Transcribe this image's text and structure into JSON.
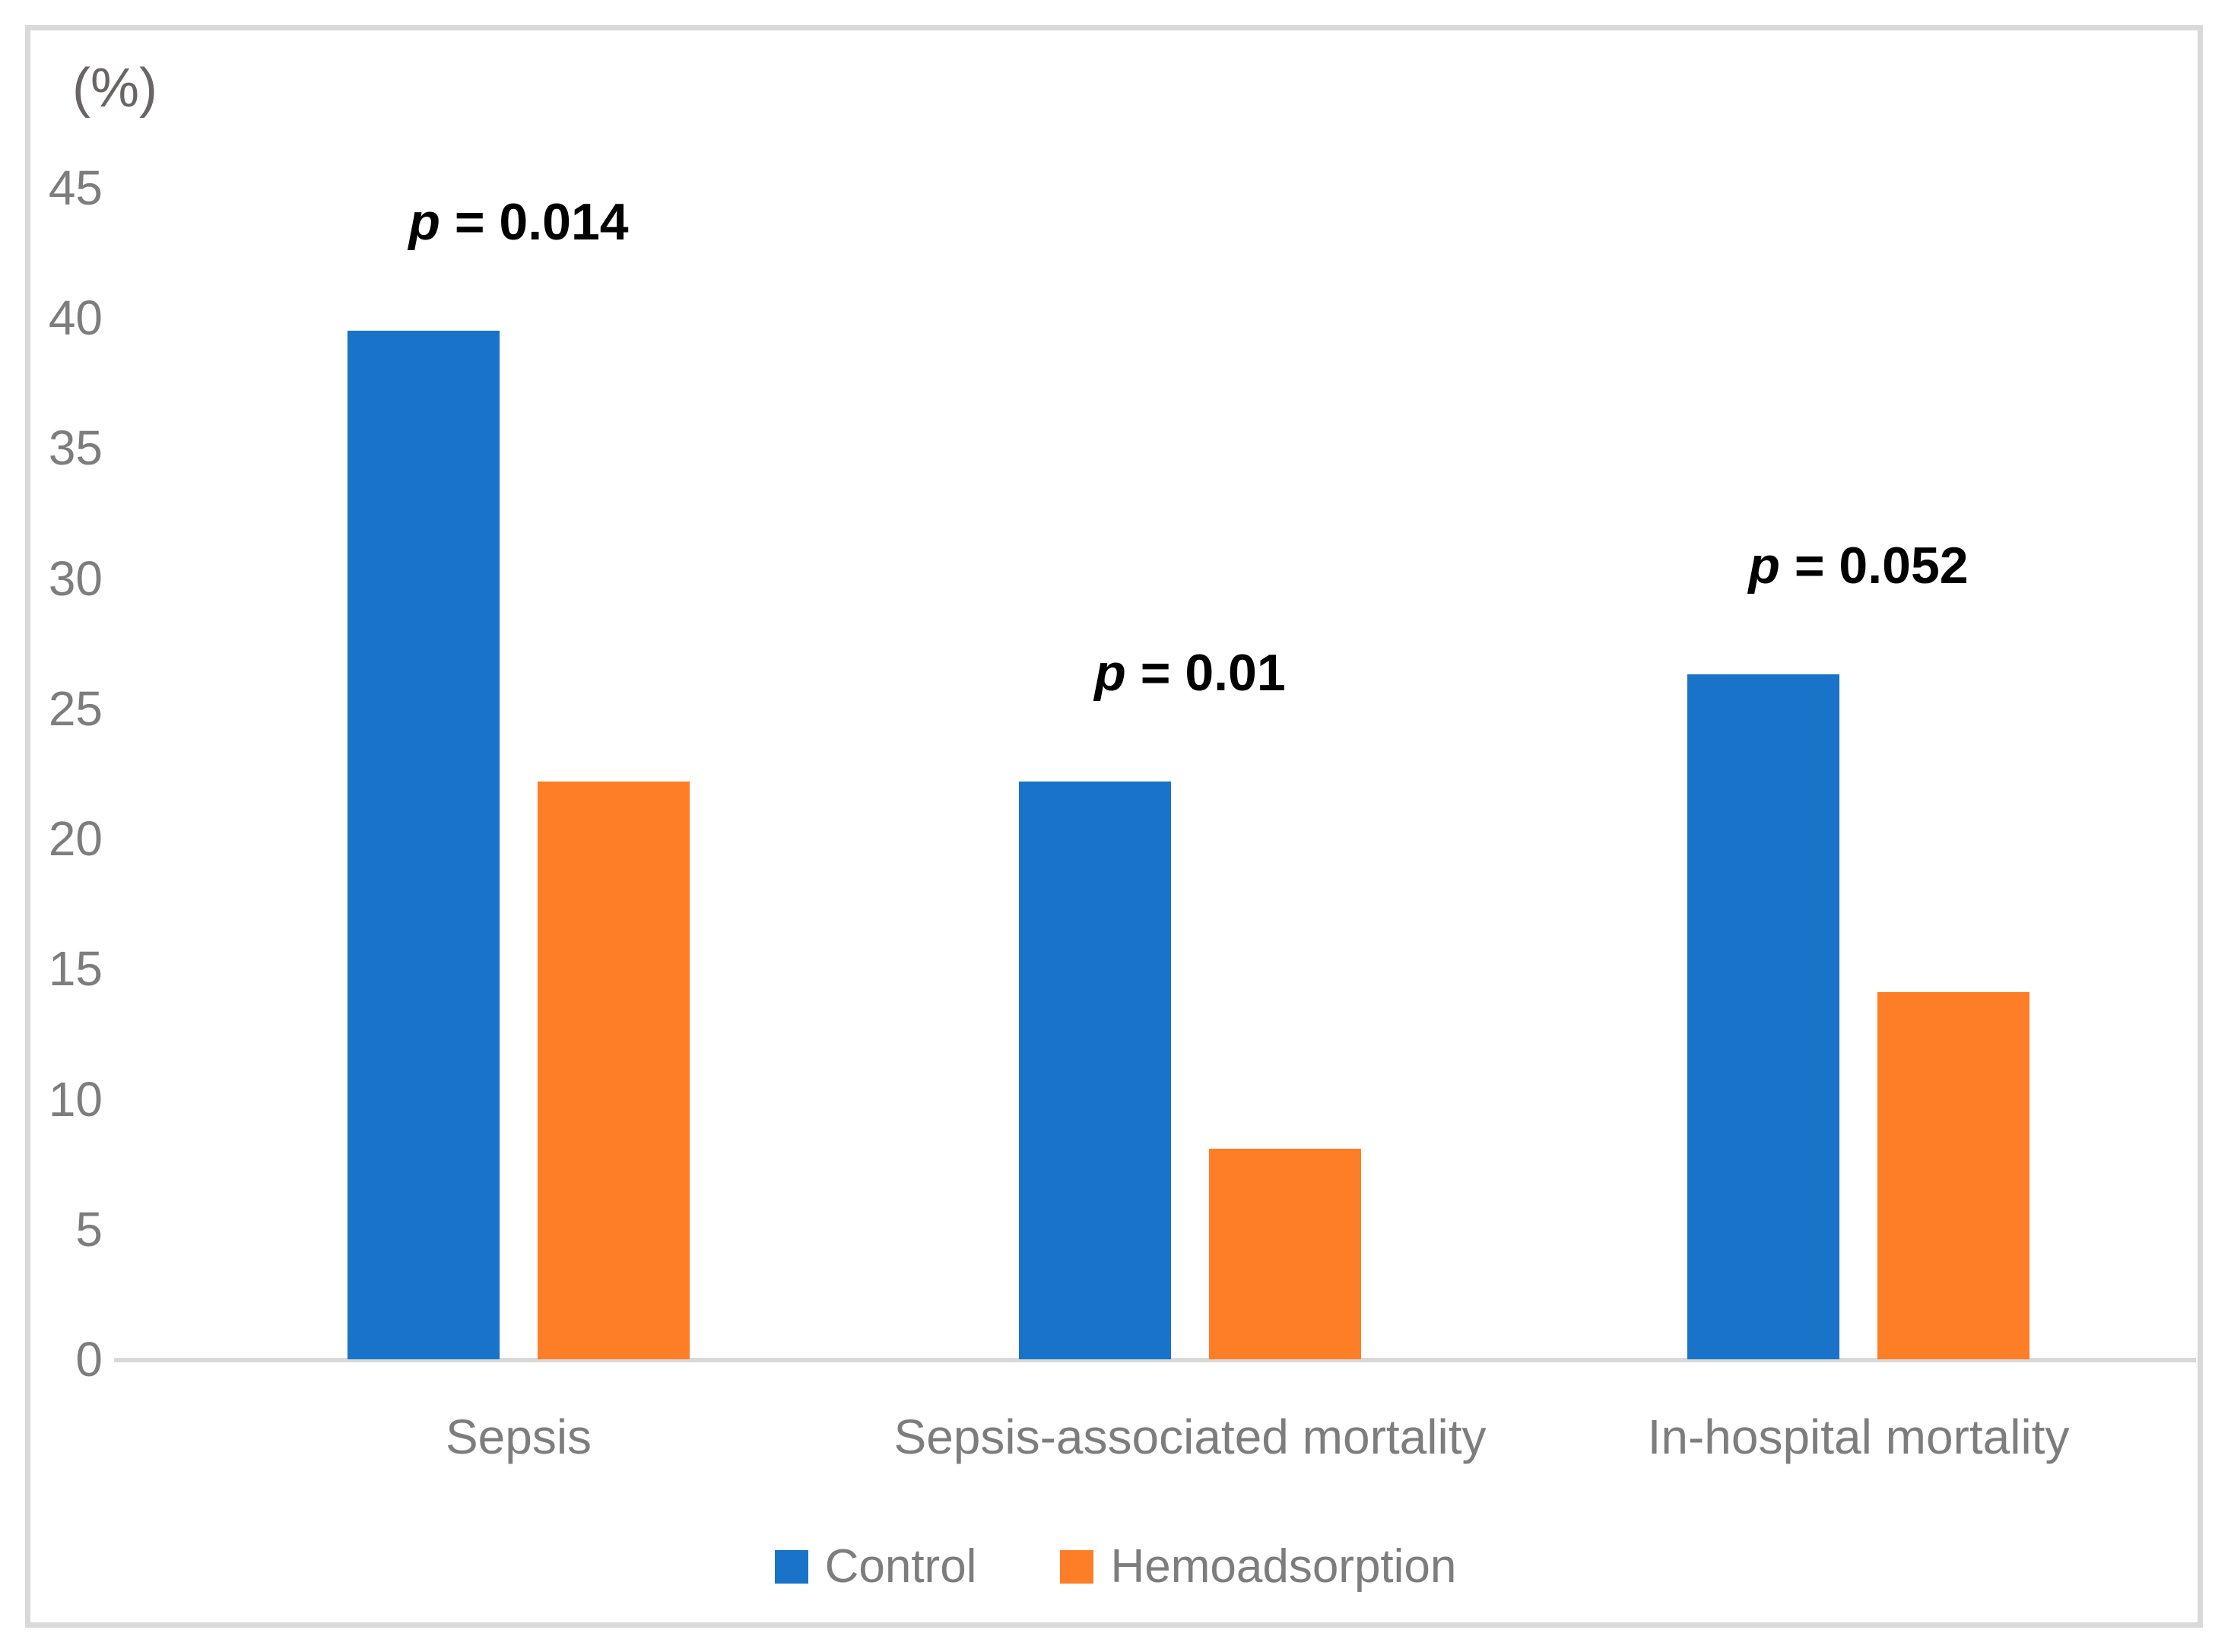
{
  "chart_data": {
    "type": "bar",
    "unit_label": "(%)",
    "categories": [
      "Sepsis",
      "Sepsis-associated mortality",
      "In-hospital mortality"
    ],
    "series": [
      {
        "name": "Control",
        "color": "#1873C9",
        "values": [
          39.5,
          22.2,
          26.3
        ]
      },
      {
        "name": "Hemoadsorption",
        "color": "#FD7E26",
        "values": [
          22.2,
          8.1,
          14.1
        ]
      }
    ],
    "annotations": [
      {
        "symbol": "p",
        "text": " = 0.014"
      },
      {
        "symbol": "p",
        "text": " = 0.01"
      },
      {
        "symbol": "p",
        "text": " = 0.052"
      }
    ],
    "y_ticks": [
      0,
      5,
      10,
      15,
      20,
      25,
      30,
      35,
      40,
      45
    ],
    "ylim": [
      0,
      45
    ],
    "grid": false,
    "legend_position": "bottom",
    "axis_line_color": "#D9D9D9",
    "label_color": "#7D7D7D",
    "annotation_color": "#000000"
  }
}
